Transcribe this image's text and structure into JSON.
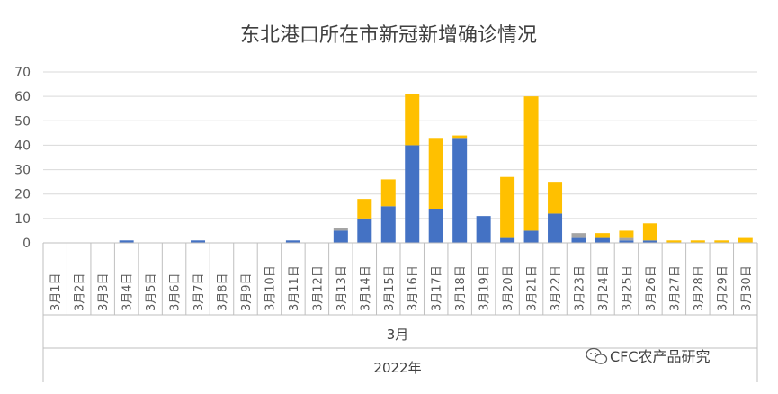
{
  "chart_data": {
    "type": "bar",
    "stacked": true,
    "title": "东北港口所在市新冠新增确诊情况",
    "categories": [
      "3月1日",
      "3月2日",
      "3月3日",
      "3月4日",
      "3月5日",
      "3月6日",
      "3月7日",
      "3月8日",
      "3月9日",
      "3月10日",
      "3月11日",
      "3月12日",
      "3月13日",
      "3月14日",
      "3月15日",
      "3月16日",
      "3月17日",
      "3月18日",
      "3月19日",
      "3月20日",
      "3月21日",
      "3月22日",
      "3月23日",
      "3月24日",
      "3月25日",
      "3月26日",
      "3月27日",
      "3月28日",
      "3月29日",
      "3月30日"
    ],
    "group_labels": {
      "month": "3月",
      "year": "2022年"
    },
    "series": [
      {
        "color": "#4472C4",
        "values": [
          0,
          0,
          0,
          1,
          0,
          0,
          1,
          0,
          0,
          0,
          1,
          0,
          5,
          10,
          15,
          40,
          14,
          43,
          11,
          2,
          5,
          12,
          2,
          2,
          1,
          1,
          0,
          0,
          0,
          0
        ]
      },
      {
        "color": "#A5A5A5",
        "values": [
          0,
          0,
          0,
          0,
          0,
          0,
          0,
          0,
          0,
          0,
          0,
          0,
          1,
          0,
          0,
          0,
          0,
          0,
          0,
          0,
          0,
          0,
          2,
          0,
          1,
          0,
          0,
          0,
          0,
          0
        ]
      },
      {
        "color": "#FFC000",
        "values": [
          0,
          0,
          0,
          0,
          0,
          0,
          0,
          0,
          0,
          0,
          0,
          0,
          0,
          8,
          11,
          21,
          29,
          1,
          0,
          25,
          55,
          13,
          0,
          2,
          3,
          7,
          1,
          1,
          1,
          2
        ]
      }
    ],
    "ylim": [
      0,
      70
    ],
    "yticks": [
      0,
      10,
      20,
      30,
      40,
      50,
      60,
      70
    ],
    "grid": true,
    "legend": "none"
  },
  "watermark": {
    "text": "CFC农产品研究",
    "icon": "wechat-icon"
  },
  "colors": {
    "axis": "#BFBFBF",
    "grid": "#D9D9D9",
    "text": "#595959"
  }
}
